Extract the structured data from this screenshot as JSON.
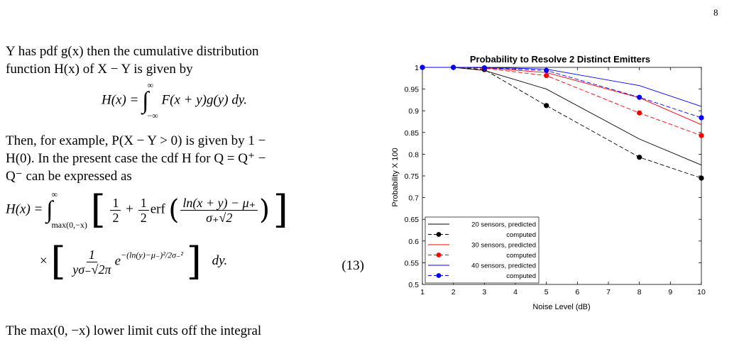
{
  "page": {
    "number": "8"
  },
  "text": {
    "intro_line1": "Y has pdf g(x) then the cumulative distribution",
    "intro_line2": "function H(x) of X − Y is given by",
    "eq1_lhs": "H(x) =",
    "eq1_upper": "∞",
    "eq1_lower": "−∞",
    "eq1_rhs": "F(x + y)g(y) dy.",
    "para2_line1": "Then, for example, P(X − Y > 0) is given by 1 −",
    "para2_line2": "H(0). In the present case the cdf H for Q = Q⁺ −",
    "para2_line3": "Q⁻ can be expressed as",
    "eq13_lhs": "H(x) =",
    "eq13_upper": "∞",
    "eq13_lower": "max(0,−x)",
    "eq13_half": "1",
    "eq13_two": "2",
    "eq13_erf": "erf",
    "eq13_num": "ln(x + y) − μ₊",
    "eq13_den": "σ₊√2",
    "eq13_times": "×",
    "eq13_one": "1",
    "eq13_den2": "yσ₋√2π",
    "eq13_e": "e",
    "eq13_exp": "−(ln(y)−μ₋)²/2σ₋²",
    "eq13_dy": "dy.",
    "eq13_number": "(13)",
    "closing": "The max(0, −x) lower limit cuts off the integral"
  },
  "chart_data": {
    "type": "line",
    "title": "Probability to Resolve 2 Distinct Emitters",
    "xlabel": "Noise Level (dB)",
    "ylabel": "Probability X 100",
    "xlim": [
      1,
      10
    ],
    "ylim": [
      0.5,
      1
    ],
    "xticks": [
      1,
      2,
      3,
      4,
      5,
      6,
      7,
      8,
      9,
      10
    ],
    "yticks": [
      0.5,
      0.55,
      0.6,
      0.65,
      0.7,
      0.75,
      0.8,
      0.85,
      0.9,
      0.95,
      1
    ],
    "grid": false,
    "legend_position": "bottom-left",
    "x": [
      1,
      2,
      3,
      5,
      8,
      10
    ],
    "series": [
      {
        "name": "20 sensors, predicted",
        "color": "#000000",
        "style": "solid",
        "marker": false,
        "values": [
          1.0,
          1.0,
          0.993,
          0.95,
          0.835,
          0.775
        ]
      },
      {
        "name": "computed",
        "color": "#000000",
        "style": "dashed",
        "marker": true,
        "values": [
          1.0,
          1.0,
          0.995,
          0.912,
          0.793,
          0.745
        ]
      },
      {
        "name": "30 sensors, predicted",
        "color": "#ff0000",
        "style": "solid",
        "marker": false,
        "values": [
          1.0,
          1.0,
          0.999,
          0.988,
          0.93,
          0.868
        ]
      },
      {
        "name": "computed",
        "color": "#ff0000",
        "style": "dashed",
        "marker": true,
        "values": [
          1.0,
          1.0,
          0.998,
          0.981,
          0.895,
          0.843
        ]
      },
      {
        "name": "40 sensors, predicted",
        "color": "#0000ff",
        "style": "solid",
        "marker": false,
        "values": [
          1.0,
          1.0,
          1.0,
          0.996,
          0.958,
          0.91
        ]
      },
      {
        "name": "computed",
        "color": "#0000ff",
        "style": "dashed",
        "marker": true,
        "values": [
          1.0,
          1.0,
          0.999,
          0.993,
          0.931,
          0.884
        ]
      }
    ]
  }
}
